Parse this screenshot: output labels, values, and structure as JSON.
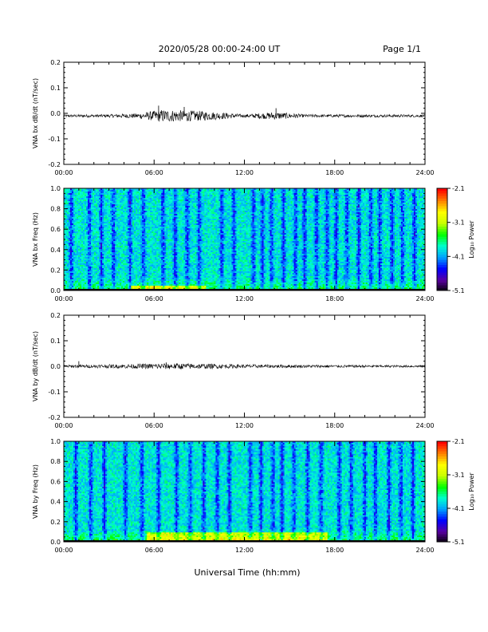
{
  "header": {
    "title": "2020/05/28  00:00-24:00 UT",
    "page": "Page 1/1"
  },
  "x_axis": {
    "ticks": [
      "00:00",
      "06:00",
      "12:00",
      "18:00",
      "24:00"
    ],
    "label": "Universal Time (hh:mm)"
  },
  "colorbar": {
    "label": "Log₁₀ Power",
    "ticks": [
      "-2.1",
      "-3.1",
      "-4.1",
      "-5.1"
    ],
    "colors": [
      "#000000",
      "#5a00a0",
      "#0000ff",
      "#00a0ff",
      "#00ffd0",
      "#00ff00",
      "#c8ff00",
      "#ffff00",
      "#ff8000",
      "#ff0000"
    ]
  },
  "chart_data": [
    {
      "type": "line",
      "id": "bx_waveform",
      "ylabel": "VNA bx dB/dt (nT/sec)",
      "xlim": [
        0,
        24
      ],
      "ylim": [
        -0.2,
        0.2
      ],
      "yticks": [
        "0.2",
        "0.1",
        "0.0",
        "-0.1",
        "-0.2"
      ],
      "description_baseline": -0.01,
      "envelope": [
        {
          "t": 0,
          "amp": 0.005
        },
        {
          "t": 3,
          "amp": 0.006
        },
        {
          "t": 5,
          "amp": 0.01
        },
        {
          "t": 6.5,
          "amp": 0.025
        },
        {
          "t": 9,
          "amp": 0.02
        },
        {
          "t": 12,
          "amp": 0.006
        },
        {
          "t": 14,
          "amp": 0.015
        },
        {
          "t": 16,
          "amp": 0.006
        },
        {
          "t": 24,
          "amp": 0.005
        }
      ],
      "spikes": [
        {
          "t": 6.3,
          "v": 0.03
        },
        {
          "t": 8.0,
          "v": 0.025
        },
        {
          "t": 8.2,
          "v": -0.03
        },
        {
          "t": 14.1,
          "v": 0.02
        }
      ]
    },
    {
      "type": "heatmap",
      "id": "bx_spectrogram",
      "ylabel": "VNA bx Freq (Hz)",
      "xlim": [
        0,
        24
      ],
      "ylim": [
        0.0,
        1.0
      ],
      "yticks": [
        "1.0",
        "0.8",
        "0.6",
        "0.4",
        "0.2",
        "0.0"
      ],
      "zlim": [
        -5.1,
        -2.1
      ],
      "dark_band_times": [
        0.5,
        1.7,
        2.5,
        3.3,
        4.4,
        5.3,
        6.6,
        7.4,
        8.2,
        9.0,
        10.5,
        11.3,
        12.6,
        13.2,
        13.8,
        14.6,
        15.4,
        16.0,
        16.8,
        17.5,
        18.1,
        18.8,
        19.6,
        20.4,
        21.0,
        21.8,
        22.5,
        23.3
      ],
      "low_freq_enhancement": {
        "t_start": 4.5,
        "t_end": 9.5,
        "max_freq": 0.03
      }
    },
    {
      "type": "line",
      "id": "by_waveform",
      "ylabel": "VNA by dB/dt (nT/sec)",
      "xlim": [
        0,
        24
      ],
      "ylim": [
        -0.2,
        0.2
      ],
      "yticks": [
        "0.2",
        "0.1",
        "0.0",
        "-0.1",
        "-0.2"
      ],
      "description_baseline": 0.0,
      "envelope": [
        {
          "t": 0,
          "amp": 0.005
        },
        {
          "t": 4,
          "amp": 0.008
        },
        {
          "t": 7,
          "amp": 0.012
        },
        {
          "t": 9.5,
          "amp": 0.01
        },
        {
          "t": 12,
          "amp": 0.007
        },
        {
          "t": 18,
          "amp": 0.005
        },
        {
          "t": 24,
          "amp": 0.004
        }
      ],
      "spikes": [
        {
          "t": 1.0,
          "v": 0.02
        },
        {
          "t": 6.8,
          "v": 0.015
        }
      ]
    },
    {
      "type": "heatmap",
      "id": "by_spectrogram",
      "ylabel": "VNA by Freq (Hz)",
      "xlim": [
        0,
        24
      ],
      "ylim": [
        0.0,
        1.0
      ],
      "yticks": [
        "1.0",
        "0.8",
        "0.6",
        "0.4",
        "0.2",
        "0.0"
      ],
      "zlim": [
        -5.1,
        -2.1
      ],
      "dark_band_times": [
        0.8,
        1.8,
        2.7,
        4.1,
        5.2,
        6.3,
        7.5,
        8.4,
        9.3,
        10.2,
        11.0,
        12.4,
        13.1,
        13.9,
        14.5,
        15.3,
        16.2,
        17.1,
        18.3,
        19.1,
        20.0,
        20.7,
        21.6,
        22.4,
        23.2
      ],
      "low_freq_enhancement": {
        "t_start": 5.5,
        "t_end": 17.5,
        "max_freq": 0.08
      }
    }
  ]
}
